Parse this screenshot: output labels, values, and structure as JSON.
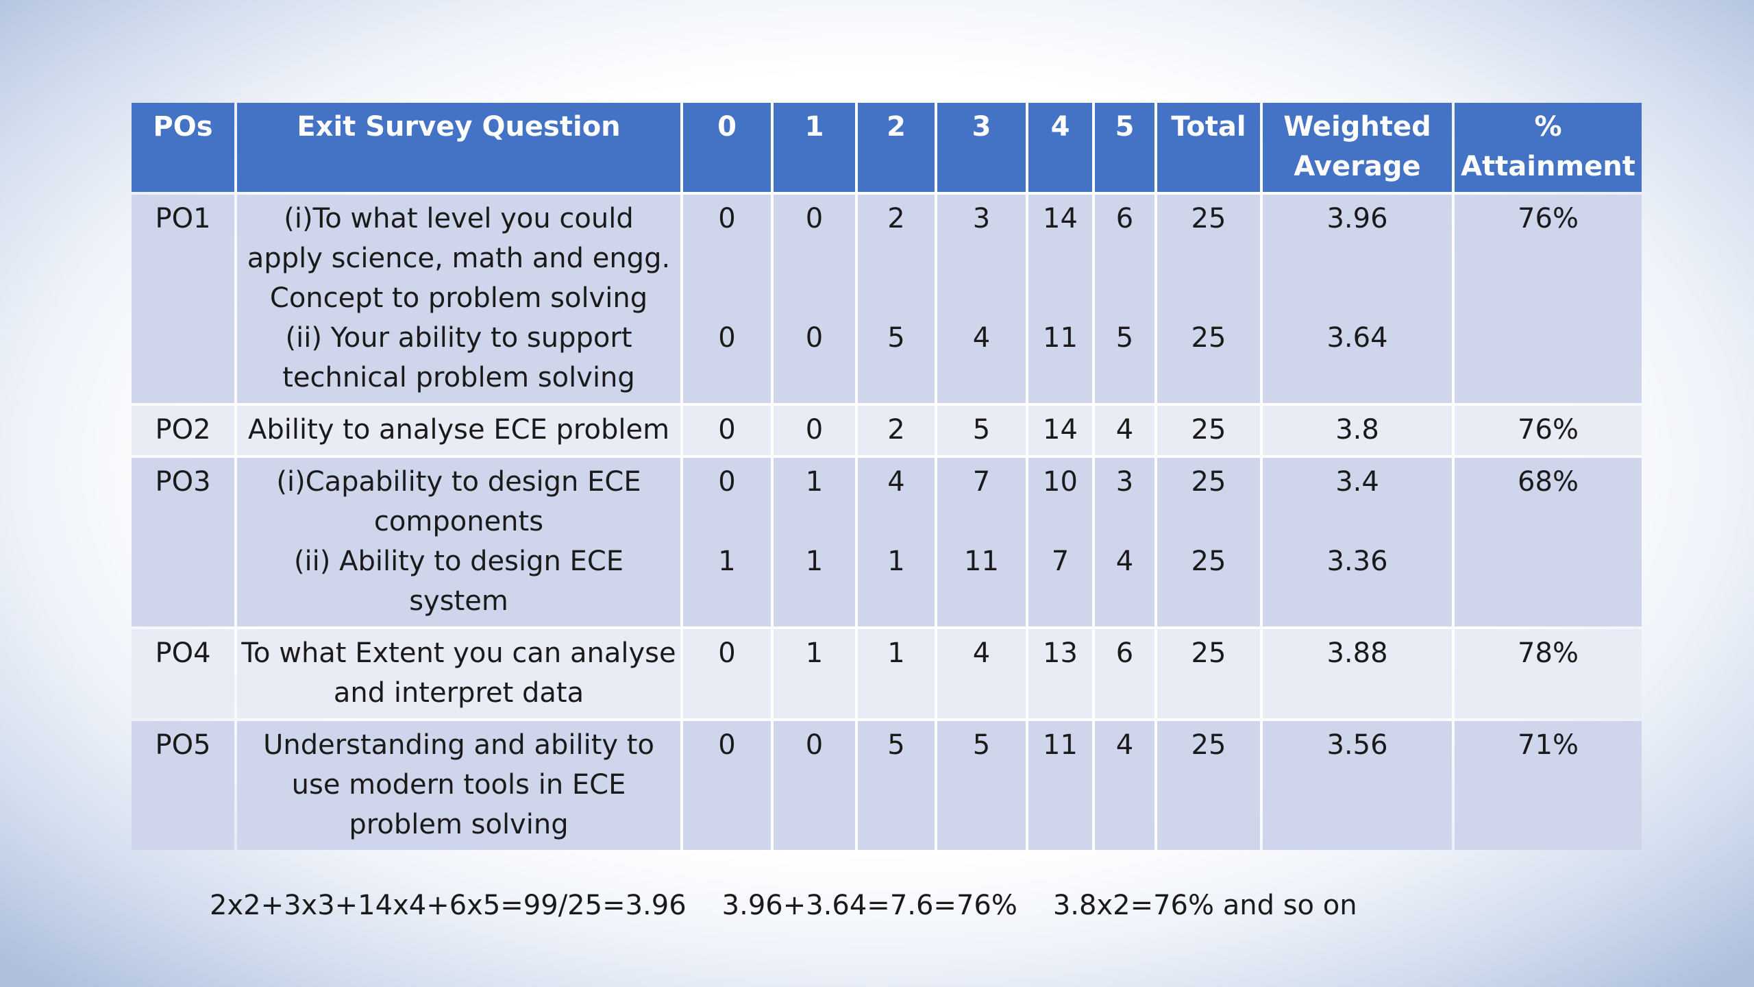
{
  "table": {
    "headers": {
      "pos": "POs",
      "question": "Exit Survey Question",
      "c0": "0",
      "c1": "1",
      "c2": "2",
      "c3": "3",
      "c4": "4",
      "c5": "5",
      "total": "Total",
      "weighted_line1": "Weighted",
      "weighted_line2": "Average",
      "attain_line1": "%",
      "attain_line2": "Attainment"
    },
    "rows": [
      {
        "po": "PO1",
        "q1_lines": [
          "(i)To what level you could",
          "apply science, math and engg.",
          "Concept to problem solving"
        ],
        "q2_lines": [
          "(ii) Your ability to support",
          "technical problem solving"
        ],
        "r1": {
          "c0": "0",
          "c1": "0",
          "c2": "2",
          "c3": "3",
          "c4": "14",
          "c5": "6",
          "total": "25",
          "weighted": "3.96"
        },
        "r2": {
          "c0": "0",
          "c1": "0",
          "c2": "5",
          "c3": "4",
          "c4": "11",
          "c5": "5",
          "total": "25",
          "weighted": "3.64"
        },
        "attainment": "76%"
      },
      {
        "po": "PO2",
        "q1_lines": [
          "Ability to analyse ECE problem"
        ],
        "r1": {
          "c0": "0",
          "c1": "0",
          "c2": "2",
          "c3": "5",
          "c4": "14",
          "c5": "4",
          "total": "25",
          "weighted": "3.8"
        },
        "attainment": "76%"
      },
      {
        "po": "PO3",
        "q1_lines": [
          "(i)Capability to design ECE",
          "components"
        ],
        "q2_lines": [
          "(ii) Ability to design ECE system"
        ],
        "r1": {
          "c0": "0",
          "c1": "1",
          "c2": "4",
          "c3": "7",
          "c4": "10",
          "c5": "3",
          "total": "25",
          "weighted": "3.4"
        },
        "r2": {
          "c0": "1",
          "c1": "1",
          "c2": "1",
          "c3": "11",
          "c4": "7",
          "c5": "4",
          "total": "25",
          "weighted": "3.36"
        },
        "attainment": "68%"
      },
      {
        "po": "PO4",
        "q1_lines": [
          "To what Extent you can analyse",
          "and  interpret data"
        ],
        "r1": {
          "c0": "0",
          "c1": "1",
          "c2": "1",
          "c3": "4",
          "c4": "13",
          "c5": "6",
          "total": "25",
          "weighted": "3.88"
        },
        "attainment": "78%"
      },
      {
        "po": "PO5",
        "q1_lines": [
          "Understanding and ability to",
          "use modern tools in ECE",
          "problem solving"
        ],
        "r1": {
          "c0": "0",
          "c1": "0",
          "c2": "5",
          "c3": "5",
          "c4": "11",
          "c5": "4",
          "total": "25",
          "weighted": "3.56"
        },
        "attainment": "71%"
      }
    ]
  },
  "formulas": {
    "f1": "2x2+3x3+14x4+6x5=99/25=3.96",
    "f2": "3.96+3.64=7.6=76%",
    "f3": "3.8x2=76% and so on"
  },
  "colors": {
    "header_bg": "#4472c4",
    "band_dark": "#cfd5ea",
    "band_light": "#e9ebf5"
  }
}
